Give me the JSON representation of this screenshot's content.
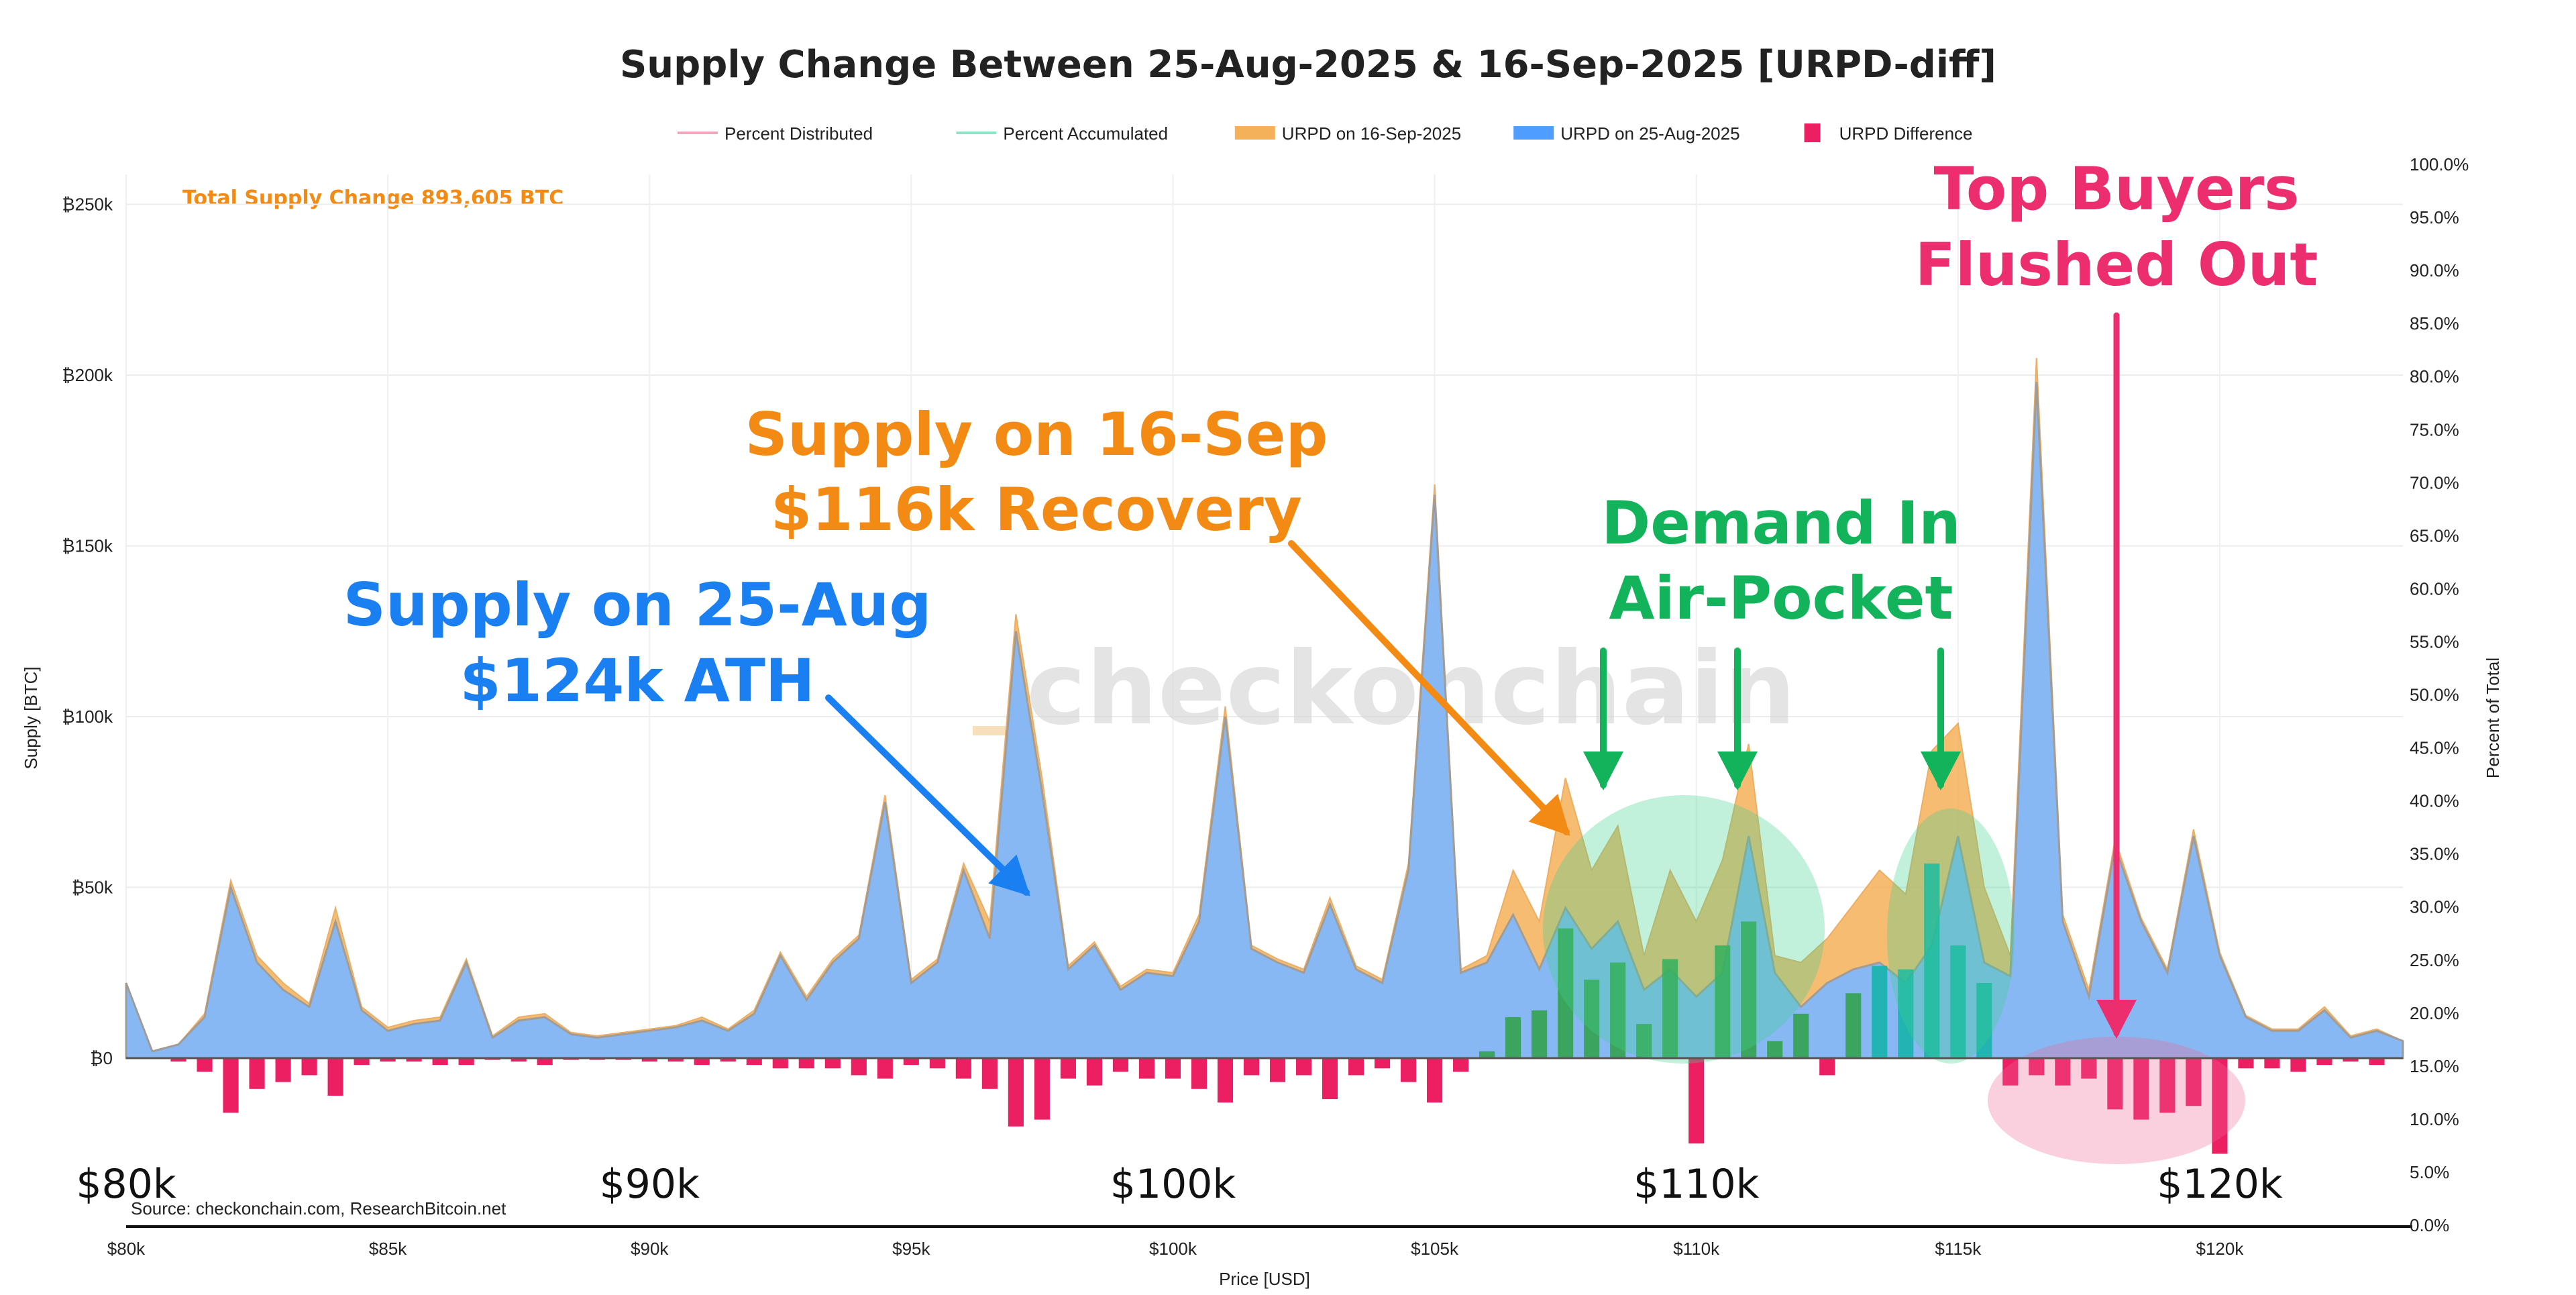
{
  "chart_data": {
    "type": "area",
    "title": "Supply Change Between 25-Aug-2025 & 16-Sep-2025 [URPD-diff]",
    "xlabel": "Price [USD]",
    "ylabel": "Supply [BTC]",
    "y2label": "Percent of Total",
    "xlim": [
      80000,
      123500
    ],
    "ylim": [
      -55000,
      260000
    ],
    "y2lim": [
      0,
      100
    ],
    "xticks": [
      80000,
      85000,
      90000,
      95000,
      100000,
      105000,
      110000,
      115000,
      120000
    ],
    "xtick_labels": [
      "$80k",
      "$85k",
      "$90k",
      "$95k",
      "$100k",
      "$105k",
      "$110k",
      "$115k",
      "$120k"
    ],
    "big_xtick_labels": [
      "$80k",
      "$90k",
      "$100k",
      "$110k",
      "$120k"
    ],
    "yticks": [
      0,
      50000,
      100000,
      150000,
      200000,
      250000
    ],
    "ytick_labels": [
      "₿0",
      "₿50k",
      "₿100k",
      "₿150k",
      "₿200k",
      "₿250k"
    ],
    "y2ticks": [
      0,
      5,
      10,
      15,
      20,
      25,
      30,
      35,
      40,
      45,
      50,
      55,
      60,
      65,
      70,
      75,
      80,
      85,
      90,
      95,
      100
    ],
    "y2tick_labels": [
      "0.0%",
      "5.0%",
      "10.0%",
      "15.0%",
      "20.0%",
      "25.0%",
      "30.0%",
      "35.0%",
      "40.0%",
      "45.0%",
      "50.0%",
      "55.0%",
      "60.0%",
      "65.0%",
      "70.0%",
      "75.0%",
      "80.0%",
      "85.0%",
      "90.0%",
      "95.0%",
      "100.0%"
    ],
    "legend": [
      {
        "name": "Percent Distributed",
        "color": "#f4a6bd",
        "style": "line"
      },
      {
        "name": "Percent Accumulated",
        "color": "#8fe3c9",
        "style": "line"
      },
      {
        "name": "URPD on 16-Sep-2025",
        "color": "#f5b15a",
        "style": "area"
      },
      {
        "name": "URPD on 25-Aug-2025",
        "color": "#4f9dff",
        "style": "area"
      },
      {
        "name": "URPD Difference",
        "color": "#ec1f63",
        "style": "bar"
      }
    ],
    "total_label": "Total Supply Change 893,605 BTC",
    "source": "Source: checkonchain.com, ResearchBitcoin.net",
    "watermark": "checkonchain",
    "x": [
      80000,
      80500,
      81000,
      81500,
      82000,
      82500,
      83000,
      83500,
      84000,
      84500,
      85000,
      85500,
      86000,
      86500,
      87000,
      87500,
      88000,
      88500,
      89000,
      89500,
      90000,
      90500,
      91000,
      91500,
      92000,
      92500,
      93000,
      93500,
      94000,
      94500,
      95000,
      95500,
      96000,
      96500,
      97000,
      97500,
      98000,
      98500,
      99000,
      99500,
      100000,
      100500,
      101000,
      101500,
      102000,
      102500,
      103000,
      103500,
      104000,
      104500,
      105000,
      105500,
      106000,
      106500,
      107000,
      107500,
      108000,
      108500,
      109000,
      109500,
      110000,
      110500,
      111000,
      111500,
      112000,
      112500,
      113000,
      113500,
      114000,
      114500,
      115000,
      115500,
      116000,
      116500,
      117000,
      117500,
      118000,
      118500,
      119000,
      119500,
      120000,
      120500,
      121000,
      121500,
      122000,
      122500,
      123000,
      123500
    ],
    "series": [
      {
        "name": "URPD on 25-Aug-2025",
        "values": [
          22000,
          2000,
          4000,
          12000,
          50000,
          28000,
          20000,
          15000,
          40000,
          14000,
          8000,
          10000,
          11000,
          28000,
          6000,
          11000,
          12000,
          7000,
          6000,
          7000,
          8000,
          9000,
          11000,
          8000,
          13000,
          30000,
          17000,
          28000,
          35000,
          75000,
          22000,
          28000,
          55000,
          35000,
          125000,
          78000,
          26000,
          33000,
          20000,
          25000,
          24000,
          40000,
          100000,
          32000,
          28000,
          25000,
          45000,
          26000,
          22000,
          55000,
          165000,
          25000,
          28000,
          42000,
          26000,
          44000,
          32000,
          40000,
          20000,
          26000,
          18000,
          25000,
          65000,
          25000,
          15000,
          22000,
          26000,
          28000,
          22000,
          33000,
          65000,
          28000,
          24000,
          198000,
          40000,
          18000,
          62000,
          40000,
          25000,
          65000,
          30000,
          12000,
          8000,
          8000,
          14000,
          6000,
          8000,
          5000
        ]
      },
      {
        "name": "URPD on 16-Sep-2025",
        "values": [
          22000,
          2000,
          4000,
          13000,
          52000,
          30000,
          22000,
          16000,
          44000,
          15000,
          9000,
          11000,
          12000,
          29000,
          6500,
          12000,
          13000,
          7500,
          6500,
          7500,
          8500,
          9500,
          12000,
          8500,
          14000,
          31000,
          18000,
          29000,
          36000,
          77000,
          23000,
          29000,
          57000,
          40000,
          130000,
          82000,
          27000,
          34000,
          21000,
          26000,
          25000,
          42000,
          103000,
          33000,
          29000,
          26000,
          47000,
          27000,
          23000,
          57000,
          168000,
          26000,
          30000,
          55000,
          40000,
          82000,
          55000,
          68000,
          30000,
          55000,
          40000,
          58000,
          92000,
          30000,
          28000,
          35000,
          45000,
          55000,
          48000,
          90000,
          98000,
          50000,
          30000,
          205000,
          42000,
          20000,
          64000,
          41000,
          26000,
          67000,
          31000,
          12500,
          8500,
          8500,
          15000,
          6500,
          8500,
          5000
        ]
      },
      {
        "name": "URPD Difference",
        "values": [
          0,
          0,
          -1000,
          -4000,
          -16000,
          -9000,
          -7000,
          -5000,
          -11000,
          -2000,
          -1000,
          -1000,
          -2000,
          -2000,
          -500,
          -1000,
          -2000,
          -500,
          -500,
          -500,
          -1000,
          -1000,
          -2000,
          -1000,
          -2000,
          -3000,
          -3000,
          -3000,
          -5000,
          -6000,
          -2000,
          -3000,
          -6000,
          -9000,
          -20000,
          -18000,
          -6000,
          -8000,
          -4000,
          -6000,
          -6000,
          -9000,
          -13000,
          -5000,
          -7000,
          -5000,
          -12000,
          -5000,
          -3000,
          -7000,
          -13000,
          -4000,
          2000,
          12000,
          14000,
          38000,
          23000,
          28000,
          10000,
          29000,
          -25000,
          33000,
          40000,
          5000,
          13000,
          -5000,
          19000,
          27000,
          26000,
          57000,
          33000,
          22000,
          -8000,
          -5000,
          -8000,
          -6000,
          -15000,
          -18000,
          -16000,
          -14000,
          -28000,
          -3000,
          -3000,
          -4000,
          -2000,
          -1000,
          -2000,
          0
        ]
      }
    ]
  },
  "annotations": {
    "aug": {
      "line1": "Supply on 25-Aug",
      "line2": "$124k ATH",
      "color": "#1a7ff0"
    },
    "sep": {
      "line1": "Supply on 16-Sep",
      "line2": "$116k Recovery",
      "color": "#f28a14"
    },
    "demand": {
      "line1": "Demand In",
      "line2": "Air-Pocket",
      "color": "#13b35c"
    },
    "top": {
      "line1": "Top Buyers",
      "line2": "Flushed Out",
      "color": "#ec2d6e"
    }
  }
}
